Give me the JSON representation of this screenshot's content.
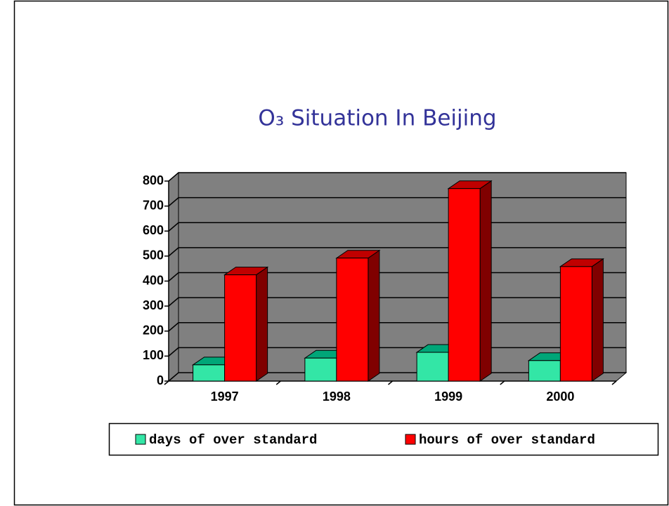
{
  "chart_data": {
    "type": "bar3d",
    "title": "O₃ Situation In Beijing",
    "categories": [
      "1997",
      "1998",
      "1999",
      "2000"
    ],
    "series": [
      {
        "name": "days of over standard",
        "color": "#33e6a6",
        "values": [
          65,
          92,
          115,
          82
        ]
      },
      {
        "name": "hours of over standard",
        "color": "#ff0000",
        "values": [
          425,
          492,
          770,
          458
        ]
      }
    ],
    "ylim": [
      0,
      800
    ],
    "yticks": [
      0,
      100,
      200,
      300,
      400,
      500,
      600,
      700,
      800
    ],
    "grid": true,
    "legend": "bottom"
  }
}
